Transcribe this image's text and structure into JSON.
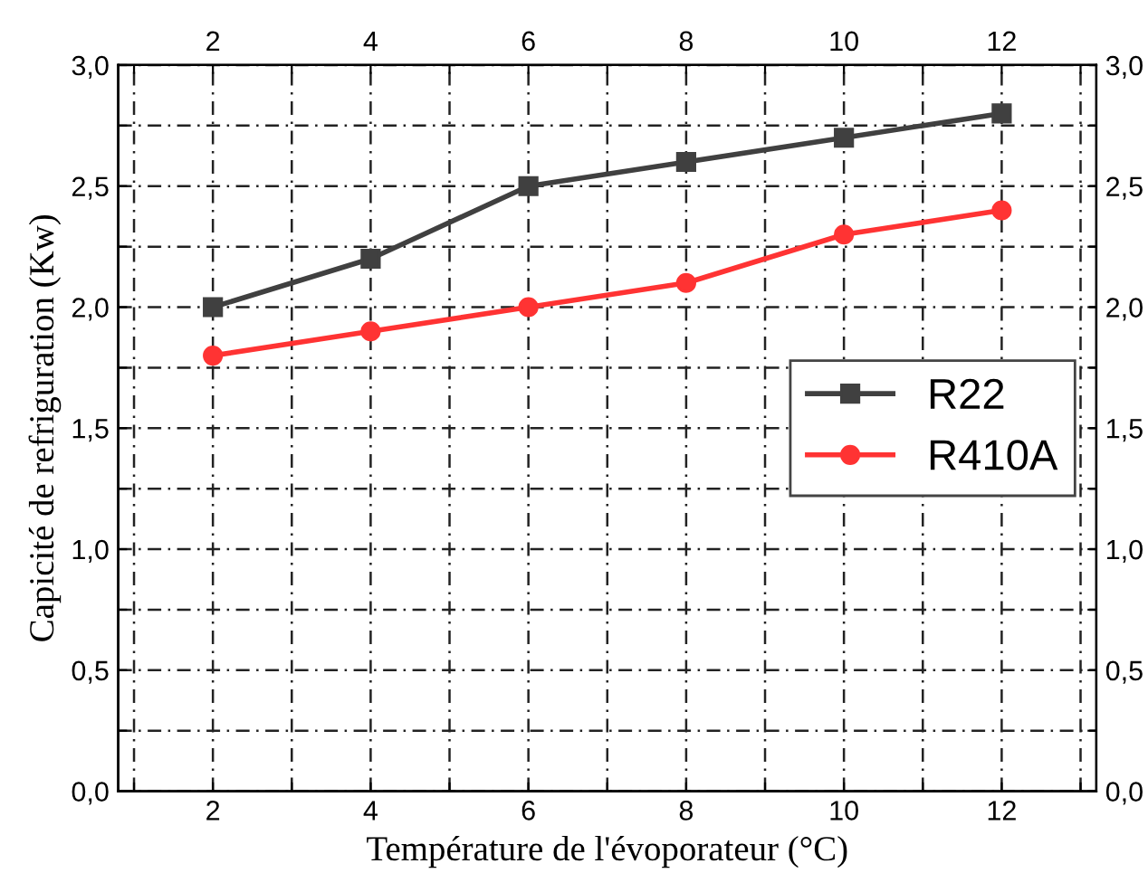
{
  "chart_data": {
    "type": "line",
    "xlabel": "Température de l'évoporateur (°C)",
    "ylabel": "Capicité de refriguration (Kw)",
    "x": [
      2,
      4,
      6,
      8,
      10,
      12
    ],
    "series": [
      {
        "name": "R22",
        "color": "#404040",
        "marker": "square",
        "values": [
          2.0,
          2.2,
          2.5,
          2.6,
          2.7,
          2.8
        ]
      },
      {
        "name": "R410A",
        "color": "#ff3333",
        "marker": "circle",
        "values": [
          1.8,
          1.9,
          2.0,
          2.1,
          2.3,
          2.4
        ]
      }
    ],
    "xlim": [
      0.8,
      13.2
    ],
    "xticks": [
      {
        "value": 1,
        "label": null
      },
      2,
      {
        "value": 3,
        "label": null
      },
      4,
      {
        "value": 5,
        "label": null
      },
      6,
      {
        "value": 7,
        "label": null
      },
      8,
      {
        "value": 9,
        "label": null
      },
      10,
      {
        "value": 11,
        "label": null
      },
      12,
      {
        "value": 13,
        "label": null
      }
    ],
    "x2lim": [
      0.8,
      13.2
    ],
    "x2ticks": [
      {
        "value": 1,
        "label": null
      },
      2,
      {
        "value": 3,
        "label": null
      },
      4,
      {
        "value": 5,
        "label": null
      },
      6,
      {
        "value": 7,
        "label": null
      },
      8,
      {
        "value": 9,
        "label": null
      },
      10,
      {
        "value": 11,
        "label": null
      },
      12,
      {
        "value": 13,
        "label": null
      }
    ],
    "ylim": [
      0,
      3.0
    ],
    "yticks": [
      {
        "value": 0,
        "label": "0,0"
      },
      {
        "value": 0.25,
        "label": null
      },
      {
        "value": 0.5,
        "label": "0,5"
      },
      {
        "value": 0.75,
        "label": null
      },
      {
        "value": 1.0,
        "label": "1,0"
      },
      {
        "value": 1.25,
        "label": null
      },
      {
        "value": 1.5,
        "label": "1,5"
      },
      {
        "value": 1.75,
        "label": null
      },
      {
        "value": 2.0,
        "label": "2,0"
      },
      {
        "value": 2.25,
        "label": null
      },
      {
        "value": 2.5,
        "label": "2,5"
      },
      {
        "value": 2.75,
        "label": null
      },
      {
        "value": 3.0,
        "label": "3,0"
      }
    ],
    "y2lim": [
      0,
      3.0
    ],
    "y2ticks": [
      {
        "value": 0,
        "label": "0,0"
      },
      {
        "value": 0.25,
        "label": null
      },
      {
        "value": 0.5,
        "label": "0,5"
      },
      {
        "value": 0.75,
        "label": null
      },
      {
        "value": 1.0,
        "label": "1,0"
      },
      {
        "value": 1.25,
        "label": null
      },
      {
        "value": 1.5,
        "label": "1,5"
      },
      {
        "value": 1.75,
        "label": null
      },
      {
        "value": 2.0,
        "label": "2,0"
      },
      {
        "value": 2.25,
        "label": null
      },
      {
        "value": 2.5,
        "label": "2,5"
      },
      {
        "value": 2.75,
        "label": null
      },
      {
        "value": 3.0,
        "label": "3,0"
      }
    ],
    "grid": true,
    "legend": "center right",
    "line_style": "solid"
  }
}
